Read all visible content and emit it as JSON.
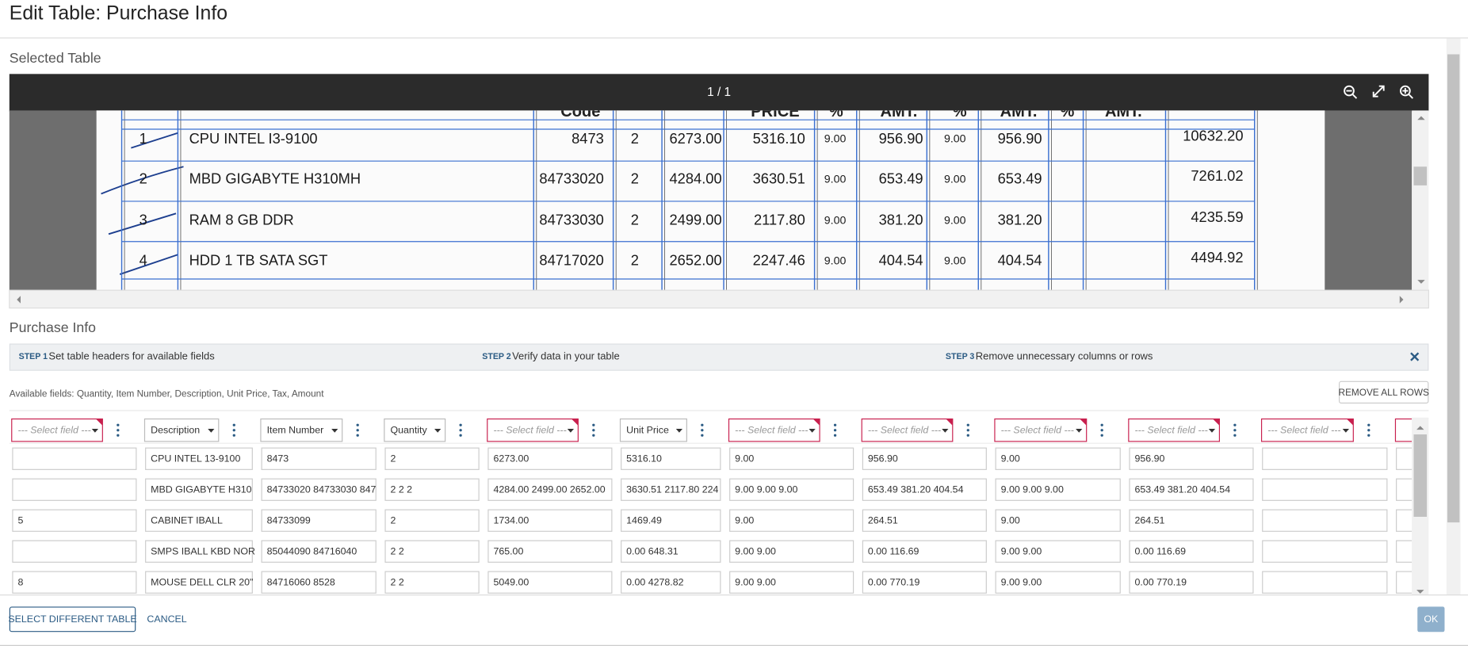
{
  "header": {
    "title": "Edit Table: Purchase Info"
  },
  "selected_table": {
    "label": "Selected Table",
    "page_indicator": "1 / 1",
    "document": {
      "header": [
        "Code",
        "PRICE",
        "%",
        "AMT.",
        "%",
        "AMT.",
        "%",
        "AMT."
      ],
      "rows": [
        [
          "1",
          "CPU INTEL I3-9100",
          "8473",
          "2",
          "6273.00",
          "5316.10",
          "9.00",
          "956.90",
          "9.00",
          "956.90",
          "10632.20"
        ],
        [
          "2",
          "MBD GIGABYTE H310MH",
          "84733020",
          "2",
          "4284.00",
          "3630.51",
          "9.00",
          "653.49",
          "9.00",
          "653.49",
          "7261.02"
        ],
        [
          "3",
          "RAM 8 GB DDR",
          "84733030",
          "2",
          "2499.00",
          "2117.80",
          "9.00",
          "381.20",
          "9.00",
          "381.20",
          "4235.59"
        ],
        [
          "4",
          "HDD 1 TB SATA SGT",
          "84717020",
          "2",
          "2652.00",
          "2247.46",
          "9.00",
          "404.54",
          "9.00",
          "404.54",
          "4494.92"
        ]
      ]
    }
  },
  "purchase_info": {
    "label": "Purchase Info",
    "steps": [
      {
        "step": "STEP 1",
        "text": "Set table headers for available fields"
      },
      {
        "step": "STEP 2",
        "text": "Verify data in your table"
      },
      {
        "step": "STEP 3",
        "text": "Remove unnecessary columns or rows"
      }
    ],
    "available_fields": "Available fields: Quantity, Item Number, Description, Unit Price, Tax, Amount",
    "remove_all_rows": "REMOVE ALL ROWS",
    "columns": [
      {
        "label": "--- Select field ---",
        "mapped": false
      },
      {
        "label": "Description",
        "mapped": true
      },
      {
        "label": "Item Number",
        "mapped": true
      },
      {
        "label": "Quantity",
        "mapped": true
      },
      {
        "label": "--- Select field ---",
        "mapped": false
      },
      {
        "label": "Unit Price",
        "mapped": true
      },
      {
        "label": "--- Select field ---",
        "mapped": false
      },
      {
        "label": "--- Select field ---",
        "mapped": false
      },
      {
        "label": "--- Select field ---",
        "mapped": false
      },
      {
        "label": "--- Select field ---",
        "mapped": false
      },
      {
        "label": "--- Select field ---",
        "mapped": false
      }
    ],
    "rows": [
      [
        null,
        "CPU INTEL 13-9100",
        "8473",
        "2",
        "6273.00",
        "5316.10",
        "9.00",
        "956.90",
        "9.00",
        "956.90",
        null
      ],
      [
        null,
        "MBD GIGABYTE H310",
        "84733020 84733030 847",
        "2 2 2",
        "4284.00 2499.00 2652.00",
        "3630.51 2117.80 224",
        "9.00 9.00 9.00",
        "653.49 381.20 404.54",
        "9.00 9.00 9.00",
        "653.49 381.20 404.54",
        null
      ],
      [
        "5",
        "CABINET IBALL",
        "84733099",
        "2",
        "1734.00",
        "1469.49",
        "9.00",
        "264.51",
        "9.00",
        "264.51",
        null
      ],
      [
        null,
        "SMPS IBALL KBD NOR",
        "85044090 84716040",
        "2 2",
        "765.00",
        "0.00 648.31",
        "9.00 9.00",
        "0.00 116.69",
        "9.00 9.00",
        "0.00 116.69",
        null
      ],
      [
        "8",
        "MOUSE DELL CLR 20\"",
        "84716060 8528",
        "2 2",
        "5049.00",
        "0.00 4278.82",
        "9.00 9.00",
        "0.00 770.19",
        "9.00 9.00",
        "0.00 770.19",
        null
      ]
    ]
  },
  "footer": {
    "select_different_table": "SELECT DIFFERENT TABLE",
    "cancel": "CANCEL",
    "ok": "OK"
  }
}
